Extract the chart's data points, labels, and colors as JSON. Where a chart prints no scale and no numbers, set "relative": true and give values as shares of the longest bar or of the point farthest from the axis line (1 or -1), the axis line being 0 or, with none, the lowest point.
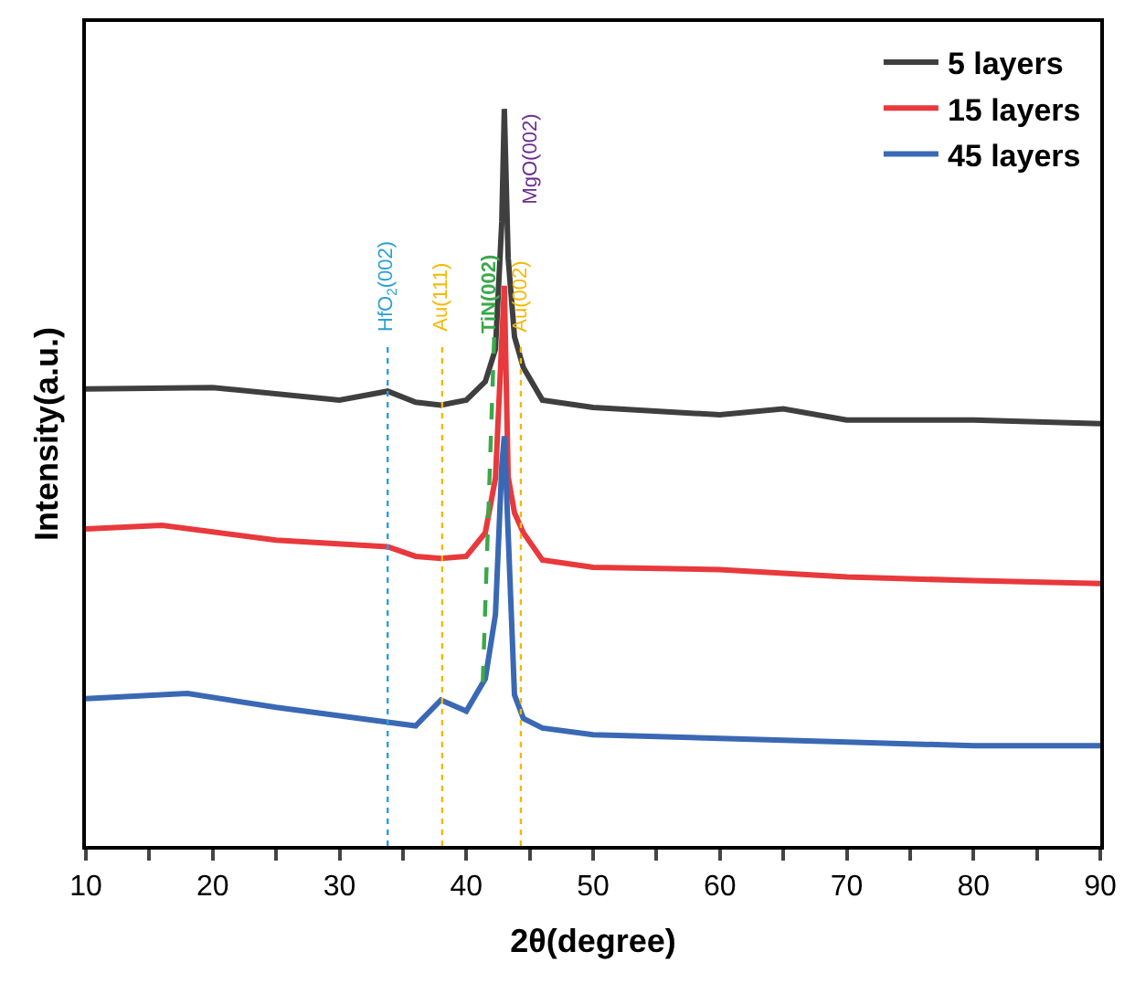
{
  "chart_data": {
    "type": "line",
    "relative": true,
    "xlabel": "2θ(degree)",
    "ylabel": "Intensity(a.u.)",
    "xlim": [
      10,
      90
    ],
    "xticks": [
      10,
      {
        "value": 15,
        "label": null
      },
      20,
      {
        "value": 25,
        "label": null
      },
      30,
      {
        "value": 35,
        "label": null
      },
      40,
      {
        "value": 45,
        "label": null
      },
      50,
      {
        "value": 55,
        "label": null
      },
      60,
      {
        "value": 65,
        "label": null
      },
      70,
      {
        "value": 75,
        "label": null
      },
      80,
      {
        "value": 85,
        "label": null
      },
      90
    ],
    "legend": "top right",
    "marker": "none",
    "line_style": "solid",
    "series": [
      {
        "name": "5 layers",
        "color": "#3f3f3f",
        "x": [
          10,
          20,
          30,
          33.8,
          36,
          38,
          40,
          41.5,
          42.3,
          42.8,
          43.0,
          43.3,
          43.8,
          44.5,
          46,
          50,
          60,
          65,
          70,
          80,
          90
        ],
        "values": [
          0.62,
          0.622,
          0.605,
          0.617,
          0.602,
          0.598,
          0.605,
          0.63,
          0.674,
          0.847,
          1.0,
          0.798,
          0.691,
          0.649,
          0.605,
          0.595,
          0.585,
          0.593,
          0.578,
          0.578,
          0.573
        ]
      },
      {
        "name": "15 layers",
        "color": "#e8393c",
        "x": [
          10,
          16,
          25,
          33.8,
          36,
          38,
          40,
          41.5,
          42.3,
          43.0,
          43.3,
          43.8,
          44.5,
          46,
          50,
          60,
          70,
          80,
          90
        ],
        "values": [
          0.43,
          0.435,
          0.415,
          0.406,
          0.393,
          0.39,
          0.393,
          0.425,
          0.499,
          0.76,
          0.501,
          0.452,
          0.425,
          0.388,
          0.378,
          0.375,
          0.365,
          0.36,
          0.356
        ]
      },
      {
        "name": "45 layers",
        "color": "#3a68b4",
        "x": [
          10,
          18,
          25,
          33.8,
          36,
          38,
          40,
          41.5,
          42.3,
          42.8,
          43.0,
          43.3,
          43.8,
          44.5,
          46,
          50,
          60,
          70,
          80,
          90
        ],
        "values": [
          0.2,
          0.207,
          0.188,
          0.168,
          0.163,
          0.198,
          0.183,
          0.227,
          0.314,
          0.516,
          0.556,
          0.425,
          0.205,
          0.173,
          0.16,
          0.151,
          0.146,
          0.141,
          0.136,
          0.136
        ]
      },
      {
        "name": "TiN(002)",
        "type": "line",
        "line_style": "dashed",
        "color": "#3aa84a",
        "x": [
          41.3,
          42.2
        ],
        "values": [
          0.222,
          0.691
        ]
      }
    ],
    "ref_lines": [
      {
        "axis": "x",
        "value": 33.8,
        "label": "HfO$_{2}$(002)",
        "color": "#2a9fd8",
        "line_style": "dotted"
      },
      {
        "axis": "x",
        "value": 38.1,
        "label": "Au(111)",
        "color": "#f5b800",
        "line_style": "dotted"
      },
      {
        "axis": "x",
        "value": 44.3,
        "label": "Au(002)",
        "color": "#f5b800",
        "line_style": "dotted"
      }
    ],
    "annotations": [
      {
        "text": "MgO(002)",
        "x": 43.0,
        "y": 1.0
      }
    ]
  }
}
